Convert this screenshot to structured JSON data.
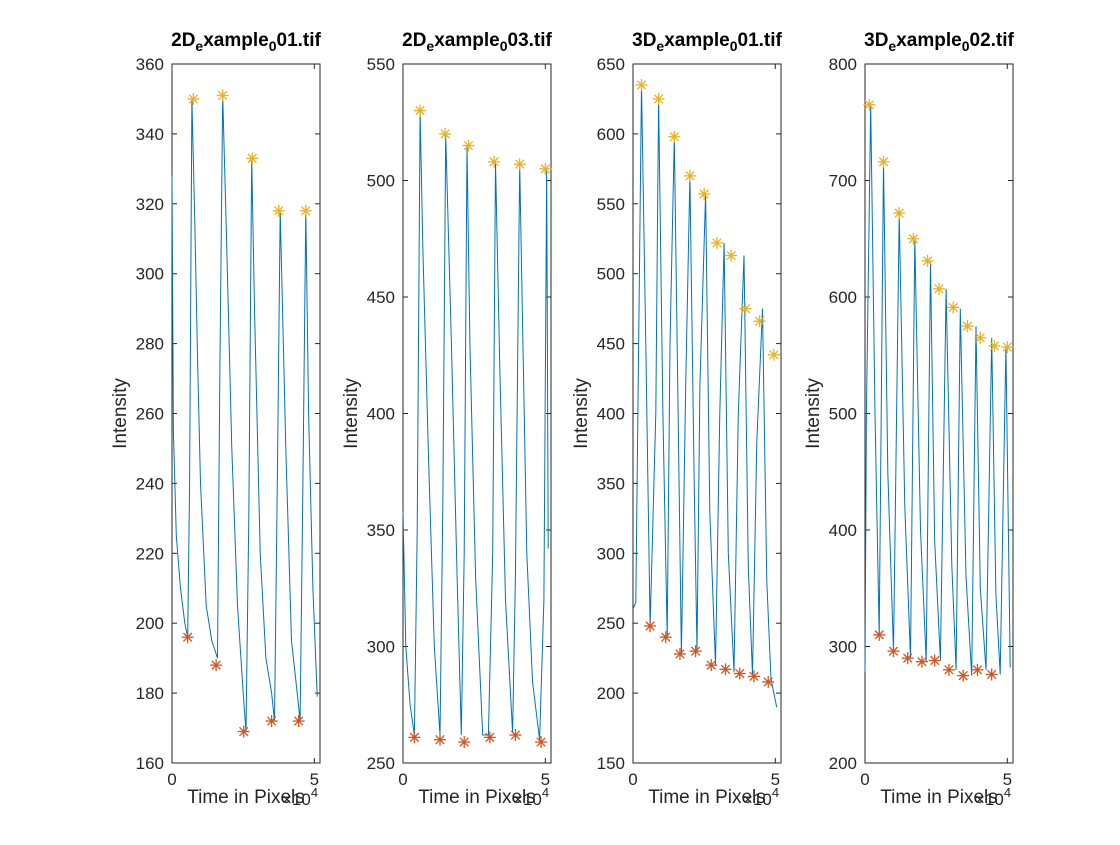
{
  "chart_data": [
    {
      "type": "line",
      "title": "2D_example_001.tif",
      "title_parts": [
        "2D",
        "e",
        "xample",
        "0",
        "01.tif"
      ],
      "xlabel": "Time in Pixels",
      "ylabel": "Intensity",
      "x_exponent": "×10",
      "x_exponent_power": "4",
      "xlim": [
        0,
        5.2
      ],
      "ylim": [
        160,
        360
      ],
      "xticks": [
        0,
        5
      ],
      "xtick_labels": [
        "0",
        "5"
      ],
      "yticks": [
        160,
        180,
        200,
        220,
        240,
        260,
        280,
        300,
        320,
        340,
        360
      ],
      "ytick_labels": [
        "160",
        "180",
        "200",
        "220",
        "240",
        "260",
        "280",
        "300",
        "320",
        "340",
        "360"
      ],
      "colors": {
        "signal": "#0072BD",
        "maxima": "#EDB120",
        "minima": "#D95319"
      },
      "signal": {
        "x": [
          0,
          0.05,
          0.15,
          0.3,
          0.45,
          0.55,
          0.62,
          0.7,
          0.8,
          0.9,
          1.0,
          1.2,
          1.4,
          1.6,
          1.68,
          1.78,
          1.9,
          2.1,
          2.3,
          2.5,
          2.6,
          2.7,
          2.8,
          2.9,
          3.1,
          3.3,
          3.5,
          3.6,
          3.7,
          3.8,
          4.0,
          4.2,
          4.4,
          4.5,
          4.6,
          4.7,
          4.8,
          4.95,
          5.1
        ],
        "y": [
          328,
          255,
          225,
          210,
          200,
          196,
          240,
          350,
          315,
          275,
          240,
          205,
          195,
          190,
          270,
          351,
          315,
          250,
          205,
          180,
          169,
          230,
          333,
          290,
          220,
          190,
          180,
          172,
          240,
          318,
          250,
          195,
          180,
          172,
          240,
          318,
          260,
          210,
          179
        ]
      },
      "maxima": {
        "x": [
          0.75,
          1.78,
          2.82,
          3.75,
          4.7
        ],
        "y": [
          350,
          351,
          333,
          318,
          318
        ]
      },
      "minima": {
        "x": [
          0.55,
          1.55,
          2.52,
          3.5,
          4.45
        ],
        "y": [
          196,
          188,
          169,
          172,
          172
        ]
      }
    },
    {
      "type": "line",
      "title": "2D_example_003.tif",
      "title_parts": [
        "2D",
        "e",
        "xample",
        "0",
        "03.tif"
      ],
      "xlabel": "Time in Pixels",
      "ylabel": "Intensity",
      "x_exponent": "×10",
      "x_exponent_power": "4",
      "xlim": [
        0,
        5.2
      ],
      "ylim": [
        250,
        550
      ],
      "xticks": [
        0,
        5
      ],
      "xtick_labels": [
        "0",
        "5"
      ],
      "yticks": [
        250,
        300,
        350,
        400,
        450,
        500,
        550
      ],
      "ytick_labels": [
        "250",
        "300",
        "350",
        "400",
        "450",
        "500",
        "550"
      ],
      "colors": {
        "signal": "#0072BD",
        "maxima": "#EDB120",
        "minima": "#D95319"
      },
      "signal": {
        "x": [
          0,
          0.1,
          0.25,
          0.4,
          0.5,
          0.6,
          0.7,
          0.9,
          1.1,
          1.3,
          1.4,
          1.5,
          1.7,
          1.9,
          2.05,
          2.15,
          2.25,
          2.35,
          2.55,
          2.8,
          3.0,
          3.15,
          3.25,
          3.4,
          3.6,
          3.85,
          3.95,
          4.1,
          4.2,
          4.35,
          4.55,
          4.8,
          4.95,
          5.05,
          5.1
        ],
        "y": [
          358,
          300,
          275,
          262,
          350,
          530,
          470,
          380,
          300,
          262,
          360,
          520,
          430,
          330,
          262,
          340,
          515,
          430,
          330,
          262,
          262,
          340,
          508,
          420,
          320,
          263,
          330,
          507,
          440,
          340,
          285,
          260,
          320,
          505,
          342
        ]
      },
      "maxima": {
        "x": [
          0.6,
          1.48,
          2.3,
          3.2,
          4.1,
          5.0
        ],
        "y": [
          530,
          520,
          515,
          508,
          507,
          505
        ]
      },
      "minima": {
        "x": [
          0.4,
          1.3,
          2.15,
          3.05,
          3.95,
          4.85
        ],
        "y": [
          261,
          260,
          259,
          261,
          262,
          259
        ]
      }
    },
    {
      "type": "line",
      "title": "3D_example_001.tif",
      "title_parts": [
        "3D",
        "e",
        "xample",
        "0",
        "01.tif"
      ],
      "xlabel": "Time in Pixels",
      "ylabel": "Intensity",
      "x_exponent": "×10",
      "x_exponent_power": "4",
      "xlim": [
        0,
        5.2
      ],
      "ylim": [
        150,
        650
      ],
      "xticks": [
        0,
        5
      ],
      "xtick_labels": [
        "0",
        "5"
      ],
      "yticks": [
        150,
        200,
        250,
        300,
        350,
        400,
        450,
        500,
        550,
        600,
        650
      ],
      "ytick_labels": [
        "150",
        "200",
        "250",
        "300",
        "350",
        "400",
        "450",
        "500",
        "550",
        "600",
        "650"
      ],
      "colors": {
        "signal": "#0072BD",
        "maxima": "#EDB120",
        "minima": "#D95319"
      },
      "signal": {
        "x": [
          0,
          0.1,
          0.3,
          0.45,
          0.6,
          0.8,
          0.9,
          1.05,
          1.2,
          1.3,
          1.45,
          1.6,
          1.7,
          1.85,
          2.0,
          2.15,
          2.25,
          2.35,
          2.55,
          2.7,
          2.9,
          3.05,
          3.2,
          3.35,
          3.55,
          3.7,
          3.9,
          4.05,
          4.2,
          4.35,
          4.55,
          4.7,
          4.85,
          5.05
        ],
        "y": [
          260,
          265,
          635,
          450,
          248,
          400,
          625,
          400,
          240,
          450,
          598,
          380,
          228,
          420,
          570,
          350,
          230,
          420,
          557,
          330,
          220,
          400,
          522,
          300,
          215,
          400,
          513,
          290,
          213,
          380,
          475,
          280,
          210,
          190
        ]
      },
      "maxima": {
        "x": [
          0.3,
          0.9,
          1.45,
          2.0,
          2.5,
          2.95,
          3.45,
          3.95,
          4.45,
          4.95
        ],
        "y": [
          635,
          625,
          598,
          570,
          557,
          522,
          513,
          475,
          466,
          442
        ]
      },
      "minima": {
        "x": [
          0.6,
          1.15,
          1.65,
          2.2,
          2.75,
          3.25,
          3.75,
          4.25,
          4.75
        ],
        "y": [
          248,
          240,
          228,
          230,
          220,
          217,
          214,
          212,
          208
        ]
      }
    },
    {
      "type": "line",
      "title": "3D_example_002.tif",
      "title_parts": [
        "3D",
        "e",
        "xample",
        "0",
        "02.tif"
      ],
      "xlabel": "Time in Pixels",
      "ylabel": "Intensity",
      "x_exponent": "×10",
      "x_exponent_power": "4",
      "xlim": [
        0,
        5.2
      ],
      "ylim": [
        200,
        800
      ],
      "xticks": [
        0,
        5
      ],
      "xtick_labels": [
        "0",
        "5"
      ],
      "yticks": [
        200,
        300,
        400,
        500,
        600,
        700,
        800
      ],
      "ytick_labels": [
        "200",
        "300",
        "400",
        "500",
        "600",
        "700",
        "800"
      ],
      "colors": {
        "signal": "#0072BD",
        "maxima": "#EDB120",
        "minima": "#D95319"
      },
      "signal": {
        "x": [
          0,
          0.05,
          0.2,
          0.35,
          0.5,
          0.65,
          0.8,
          1.0,
          1.2,
          1.4,
          1.6,
          1.75,
          1.95,
          2.15,
          2.3,
          2.45,
          2.65,
          2.85,
          3.05,
          3.2,
          3.35,
          3.55,
          3.75,
          3.9,
          4.05,
          4.25,
          4.45,
          4.6,
          4.75,
          4.95,
          5.1
        ],
        "y": [
          278,
          500,
          765,
          500,
          310,
          716,
          450,
          296,
          672,
          420,
          290,
          650,
          400,
          287,
          630,
          390,
          288,
          607,
          370,
          280,
          590,
          360,
          275,
          575,
          350,
          280,
          565,
          345,
          276,
          558,
          282
        ]
      },
      "maxima": {
        "x": [
          0.15,
          0.65,
          1.2,
          1.7,
          2.2,
          2.6,
          3.1,
          3.6,
          4.05,
          4.55,
          5.0
        ],
        "y": [
          765,
          716,
          672,
          650,
          631,
          607,
          591,
          575,
          565,
          558,
          557
        ]
      },
      "minima": {
        "x": [
          0.5,
          1.0,
          1.5,
          2.0,
          2.45,
          2.95,
          3.45,
          3.95,
          4.45
        ],
        "y": [
          310,
          296,
          290,
          287,
          288,
          280,
          275,
          280,
          276
        ]
      }
    }
  ]
}
